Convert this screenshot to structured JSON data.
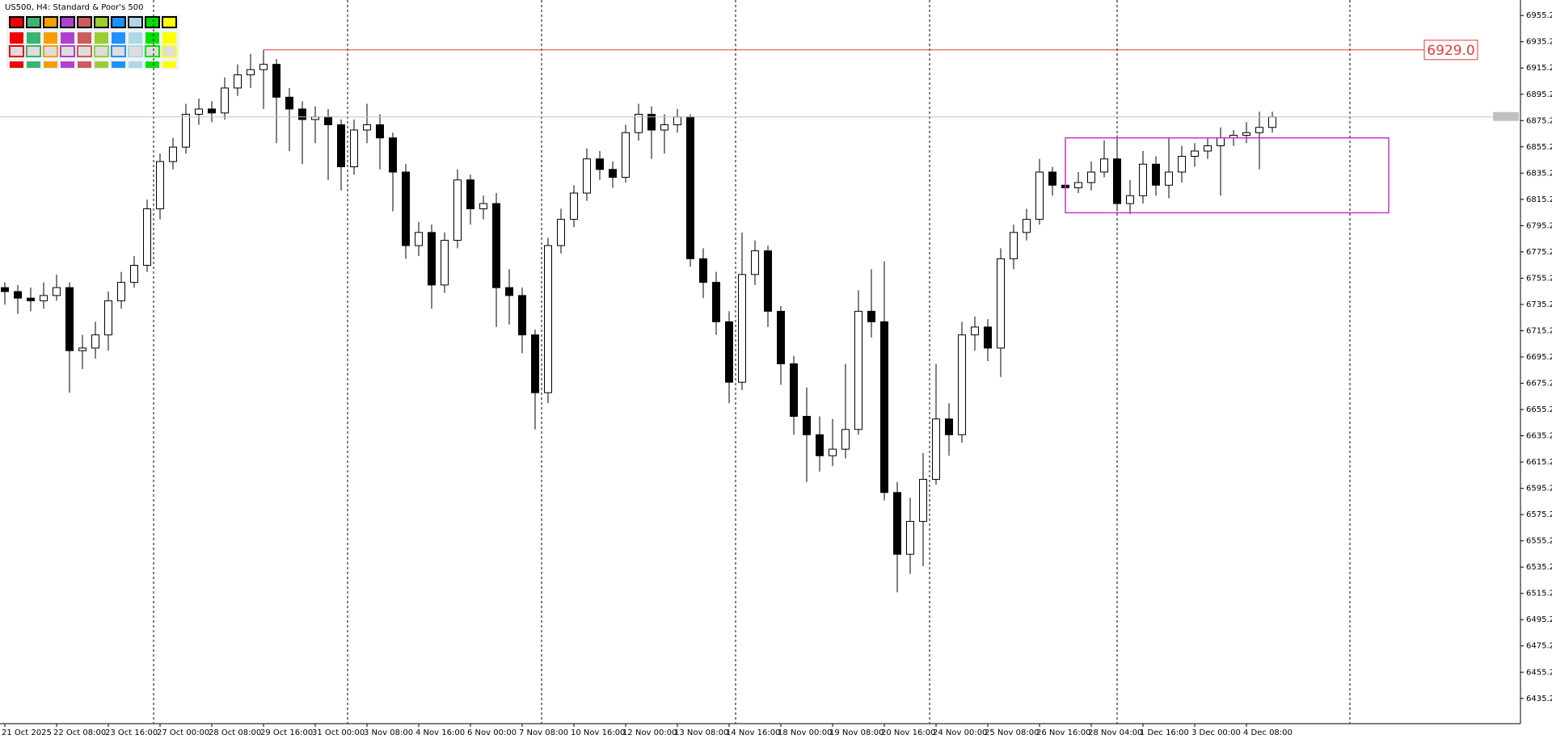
{
  "chart_data": {
    "type": "candlestick",
    "title": "US500, H4:  Standard & Poor's 500",
    "categories": [
      "21 Oct 2025",
      null,
      null,
      null,
      "22 Oct 08:00",
      null,
      null,
      null,
      "23 Oct 16:00",
      null,
      null,
      null,
      "27 Oct 00:00",
      null,
      null,
      null,
      "28 Oct 08:00",
      null,
      null,
      null,
      "29 Oct 16:00",
      null,
      null,
      null,
      "31 Oct 00:00",
      null,
      null,
      null,
      "3 Nov 08:00",
      null,
      null,
      null,
      "4 Nov 16:00",
      null,
      null,
      null,
      "6 Nov 00:00",
      null,
      null,
      null,
      "7 Nov 08:00",
      null,
      null,
      null,
      "10 Nov 16:00",
      null,
      null,
      null,
      "12 Nov 00:00",
      null,
      null,
      null,
      "13 Nov 08:00",
      null,
      null,
      null,
      "14 Nov 16:00",
      null,
      null,
      null,
      "18 Nov 00:00",
      null,
      null,
      null,
      "19 Nov 08:00",
      null,
      null,
      null,
      "20 Nov 16:00",
      null,
      null,
      null,
      "24 Nov 00:00",
      null,
      null,
      null,
      "25 Nov 08:00",
      null,
      null,
      null,
      "26 Nov 16:00",
      null,
      null,
      null,
      "28 Nov 04:00",
      null,
      null,
      null,
      "1 Dec 16:00",
      null,
      null,
      null,
      "3 Dec 00:00",
      null,
      null,
      null,
      "4 Dec 08:00",
      null,
      null
    ],
    "open": [
      6748,
      6745,
      6740,
      6738,
      6742,
      6748,
      6700,
      6702,
      6712,
      6738,
      6752,
      6765,
      6808,
      6844,
      6855,
      6880,
      6884,
      6881,
      6900,
      6910,
      6914,
      6918,
      6893,
      6884,
      6876,
      6878,
      6872,
      6840,
      6868,
      6872,
      6862,
      6836,
      6780,
      6790,
      6750,
      6784,
      6830,
      6808,
      6812,
      6748,
      6742,
      6712,
      6668,
      6780,
      6800,
      6820,
      6846,
      6838,
      6832,
      6866,
      6880,
      6868,
      6872,
      6878,
      6770,
      6752,
      6722,
      6676,
      6758,
      6776,
      6730,
      6690,
      6650,
      6636,
      6620,
      6625,
      6640,
      6730,
      6722,
      6592,
      6545,
      6570,
      6602,
      6648,
      6636,
      6712,
      6718,
      6702,
      6770,
      6790,
      6800,
      6836,
      6826,
      6824,
      6828,
      6836,
      6846,
      6812,
      6818,
      6842,
      6826,
      6836,
      6848,
      6852,
      6856,
      6862,
      6864,
      6866,
      6870
    ],
    "high": [
      6752,
      6750,
      6748,
      6752,
      6758,
      6752,
      6712,
      6722,
      6745,
      6760,
      6772,
      6815,
      6850,
      6862,
      6888,
      6892,
      6890,
      6908,
      6918,
      6926,
      6929,
      6922,
      6900,
      6890,
      6886,
      6884,
      6876,
      6876,
      6888,
      6880,
      6866,
      6842,
      6798,
      6796,
      6790,
      6838,
      6834,
      6818,
      6820,
      6762,
      6748,
      6716,
      6786,
      6808,
      6826,
      6854,
      6852,
      6844,
      6872,
      6888,
      6886,
      6880,
      6884,
      6880,
      6778,
      6760,
      6730,
      6790,
      6784,
      6780,
      6734,
      6696,
      6672,
      6650,
      6648,
      6690,
      6746,
      6762,
      6768,
      6600,
      6588,
      6622,
      6690,
      6660,
      6722,
      6726,
      6724,
      6778,
      6796,
      6808,
      6846,
      6840,
      6832,
      6836,
      6844,
      6860,
      6864,
      6830,
      6852,
      6848,
      6862,
      6856,
      6858,
      6862,
      6870,
      6868,
      6874,
      6882,
      6882
    ],
    "low": [
      6735,
      6728,
      6730,
      6732,
      6738,
      6668,
      6686,
      6694,
      6700,
      6732,
      6748,
      6760,
      6800,
      6838,
      6850,
      6872,
      6874,
      6876,
      6894,
      6900,
      6884,
      6858,
      6852,
      6842,
      6858,
      6830,
      6822,
      6834,
      6858,
      6838,
      6806,
      6770,
      6772,
      6732,
      6744,
      6778,
      6796,
      6800,
      6718,
      6720,
      6698,
      6640,
      6660,
      6774,
      6794,
      6814,
      6830,
      6824,
      6828,
      6860,
      6846,
      6850,
      6866,
      6764,
      6740,
      6712,
      6660,
      6670,
      6750,
      6718,
      6674,
      6636,
      6600,
      6608,
      6612,
      6618,
      6636,
      6710,
      6586,
      6516,
      6530,
      6536,
      6598,
      6620,
      6630,
      6700,
      6692,
      6680,
      6762,
      6784,
      6796,
      6818,
      6818,
      6820,
      6822,
      6832,
      6806,
      6804,
      6812,
      6818,
      6816,
      6828,
      6840,
      6846,
      6818,
      6856,
      6858,
      6838,
      6866
    ],
    "close": [
      6745,
      6740,
      6738,
      6742,
      6748,
      6700,
      6702,
      6712,
      6738,
      6752,
      6765,
      6808,
      6844,
      6855,
      6880,
      6884,
      6881,
      6900,
      6910,
      6914,
      6918,
      6893,
      6884,
      6876,
      6878,
      6872,
      6840,
      6868,
      6872,
      6862,
      6836,
      6780,
      6790,
      6750,
      6784,
      6830,
      6808,
      6812,
      6748,
      6742,
      6712,
      6668,
      6780,
      6800,
      6820,
      6846,
      6838,
      6832,
      6866,
      6880,
      6868,
      6872,
      6878,
      6770,
      6752,
      6722,
      6676,
      6758,
      6776,
      6730,
      6690,
      6650,
      6636,
      6620,
      6625,
      6640,
      6730,
      6722,
      6592,
      6545,
      6570,
      6602,
      6648,
      6636,
      6712,
      6718,
      6702,
      6770,
      6790,
      6800,
      6836,
      6826,
      6824,
      6828,
      6836,
      6846,
      6812,
      6818,
      6842,
      6826,
      6836,
      6848,
      6852,
      6856,
      6862,
      6864,
      6866,
      6870,
      6878
    ],
    "ylim": [
      6416,
      6967
    ],
    "yticks": [
      6435.2,
      6455.2,
      6475.2,
      6495.2,
      6515.2,
      6535.2,
      6555.2,
      6575.2,
      6595.2,
      6615.2,
      6635.2,
      6655.2,
      6675.2,
      6695.2,
      6715.2,
      6735.2,
      6755.2,
      6775.2,
      6795.2,
      6815.2,
      6835.2,
      6855.2,
      6875.2,
      6895.2,
      6915.2,
      6935.2,
      6955.2
    ],
    "period_separators": [
      11.5,
      26.5,
      41.5,
      56.5,
      71.5,
      86,
      104
    ],
    "hlines": [
      {
        "value": 6929,
        "label": "6929.0",
        "color": "#e53935"
      }
    ],
    "rectangles": [
      {
        "x_start": 82,
        "x_end": 107,
        "y_low": 6805,
        "y_high": 6862,
        "color": "#cc33cc"
      }
    ]
  }
}
